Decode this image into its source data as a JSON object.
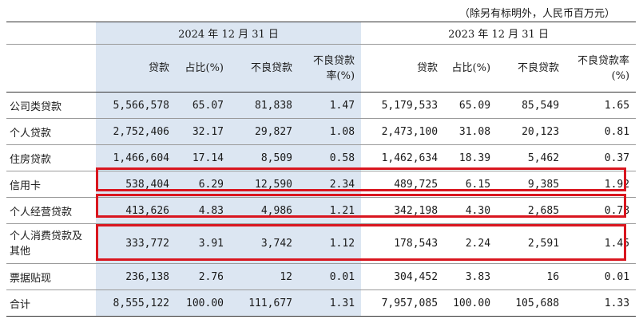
{
  "note": "（除另有标明外，人民币百万元）",
  "periods": [
    "2024 年 12 月 31 日",
    "2023 年 12 月 31 日"
  ],
  "columns": [
    "贷款",
    "占比(%)",
    "不良贷款",
    "不良贷款率(%)",
    "贷款",
    "占比(%)",
    "不良贷款",
    "不良贷款率(%)"
  ],
  "rows": [
    {
      "label": "公司类贷款",
      "values": [
        "5,566,578",
        "65.07",
        "81,838",
        "1.47",
        "5,179,533",
        "65.09",
        "85,549",
        "1.65"
      ]
    },
    {
      "label": "个人贷款",
      "values": [
        "2,752,406",
        "32.17",
        "29,827",
        "1.08",
        "2,473,100",
        "31.08",
        "20,123",
        "0.81"
      ]
    },
    {
      "label": "住房贷款",
      "values": [
        "1,466,604",
        "17.14",
        "8,509",
        "0.58",
        "1,462,634",
        "18.39",
        "5,462",
        "0.37"
      ]
    },
    {
      "label": "信用卡",
      "values": [
        "538,404",
        "6.29",
        "12,590",
        "2.34",
        "489,725",
        "6.15",
        "9,385",
        "1.92"
      ]
    },
    {
      "label": "个人经营贷款",
      "values": [
        "413,626",
        "4.83",
        "4,986",
        "1.21",
        "342,198",
        "4.30",
        "2,685",
        "0.78"
      ]
    },
    {
      "label": "个人消费贷款及其他",
      "values": [
        "333,772",
        "3.91",
        "3,742",
        "1.12",
        "178,543",
        "2.24",
        "2,591",
        "1.45"
      ]
    },
    {
      "label": "票据贴现",
      "values": [
        "236,138",
        "2.76",
        "12",
        "0.01",
        "304,452",
        "3.83",
        "16",
        "0.01"
      ]
    },
    {
      "label": "合计",
      "values": [
        "8,555,122",
        "100.00",
        "111,677",
        "1.31",
        "7,957,085",
        "100.00",
        "105,688",
        "1.33"
      ]
    }
  ],
  "highlight_colors": {
    "shade": "#dce6f2",
    "box": "#d9161f"
  }
}
